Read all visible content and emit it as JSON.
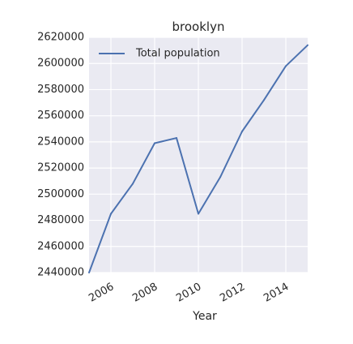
{
  "chart_data": {
    "type": "line",
    "title": "brooklyn",
    "xlabel": "Year",
    "ylabel": "",
    "x": [
      2005,
      2006,
      2007,
      2008,
      2009,
      2010,
      2011,
      2012,
      2013,
      2014,
      2015
    ],
    "series": [
      {
        "name": "Total population",
        "values": [
          2440000,
          2485000,
          2508000,
          2539000,
          2543000,
          2485000,
          2513000,
          2548000,
          2572000,
          2598000,
          2614000
        ]
      }
    ],
    "xlim": [
      2005,
      2015
    ],
    "ylim": [
      2440000,
      2620000
    ],
    "xticks": [
      2006,
      2008,
      2010,
      2012,
      2014
    ],
    "yticks": [
      2440000,
      2460000,
      2480000,
      2500000,
      2520000,
      2540000,
      2560000,
      2580000,
      2600000,
      2620000
    ],
    "grid": true,
    "legend_position": "top-left",
    "colors": {
      "line": "#4c72b0",
      "background": "#eaeaf2",
      "grid": "#ffffff",
      "text": "#262626"
    }
  }
}
